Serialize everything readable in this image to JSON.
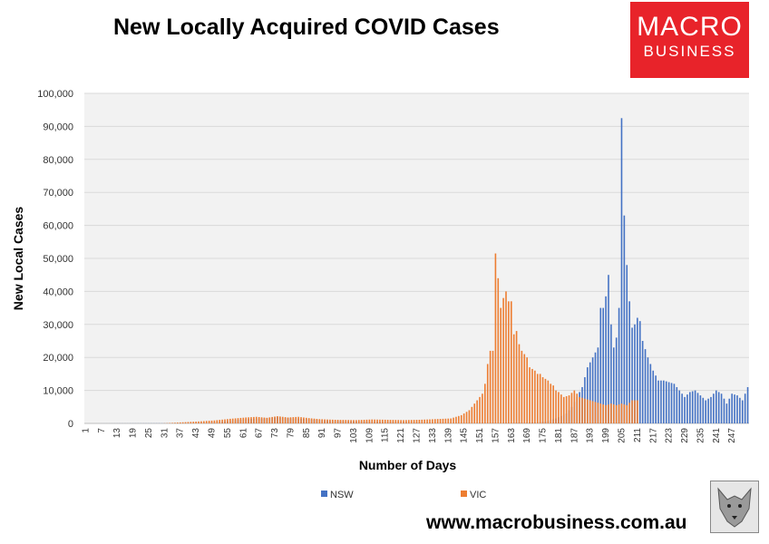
{
  "header": {
    "title": "New Locally Acquired COVID Cases"
  },
  "logo": {
    "line1": "MACRO",
    "line2": "BUSINESS"
  },
  "footer": {
    "url": "www.macrobusiness.com.au"
  },
  "colors": {
    "nsw": "#4472c4",
    "vic": "#ed7d31",
    "logo_bg": "#e8232a",
    "plot_bg": "#f2f2f2"
  },
  "chart_data": {
    "type": "bar",
    "xlabel": "Number of Days",
    "ylabel": "New Local Cases",
    "ylim": [
      0,
      100000
    ],
    "yticks": [
      "0",
      "10,000",
      "20,000",
      "30,000",
      "40,000",
      "50,000",
      "60,000",
      "70,000",
      "80,000",
      "90,000",
      "100,000"
    ],
    "x_first_day": 1,
    "x_last_day": 253,
    "x_tick_labels": [
      "1",
      "7",
      "13",
      "19",
      "25",
      "31",
      "37",
      "43",
      "49",
      "55",
      "61",
      "67",
      "73",
      "79",
      "85",
      "91",
      "97",
      "103",
      "109",
      "115",
      "121",
      "127",
      "133",
      "139",
      "145",
      "151",
      "157",
      "163",
      "169",
      "175",
      "181",
      "187",
      "193",
      "199",
      "205",
      "211",
      "217",
      "223",
      "229",
      "235",
      "241",
      "247"
    ],
    "legend_position": "bottom",
    "series": [
      {
        "name": "NSW",
        "color": "#4472c4",
        "points": [
          [
            1,
            0
          ],
          [
            40,
            50
          ],
          [
            50,
            300
          ],
          [
            56,
            800
          ],
          [
            62,
            1300
          ],
          [
            68,
            1500
          ],
          [
            74,
            1900
          ],
          [
            80,
            1500
          ],
          [
            86,
            1300
          ],
          [
            92,
            900
          ],
          [
            100,
            700
          ],
          [
            110,
            500
          ],
          [
            120,
            400
          ],
          [
            130,
            200
          ],
          [
            140,
            100
          ],
          [
            150,
            150
          ],
          [
            160,
            200
          ],
          [
            166,
            250
          ],
          [
            172,
            300
          ],
          [
            176,
            600
          ],
          [
            180,
            1500
          ],
          [
            184,
            3000
          ],
          [
            186,
            5000
          ],
          [
            188,
            8000
          ],
          [
            190,
            11000
          ],
          [
            192,
            17000
          ],
          [
            194,
            20000
          ],
          [
            196,
            23000
          ],
          [
            197,
            35000
          ],
          [
            198,
            35000
          ],
          [
            199,
            38500
          ],
          [
            200,
            45000
          ],
          [
            201,
            30000
          ],
          [
            202,
            23000
          ],
          [
            203,
            26000
          ],
          [
            204,
            35000
          ],
          [
            205,
            92500
          ],
          [
            206,
            63000
          ],
          [
            207,
            48000
          ],
          [
            208,
            37000
          ],
          [
            209,
            29000
          ],
          [
            210,
            30000
          ],
          [
            211,
            32000
          ],
          [
            212,
            31000
          ],
          [
            213,
            25000
          ],
          [
            215,
            20000
          ],
          [
            217,
            16000
          ],
          [
            219,
            13000
          ],
          [
            221,
            13000
          ],
          [
            223,
            12500
          ],
          [
            225,
            12000
          ],
          [
            227,
            10000
          ],
          [
            229,
            8000
          ],
          [
            231,
            9500
          ],
          [
            233,
            10000
          ],
          [
            235,
            8500
          ],
          [
            237,
            7000
          ],
          [
            239,
            8000
          ],
          [
            241,
            10000
          ],
          [
            243,
            9000
          ],
          [
            245,
            6000
          ],
          [
            247,
            9000
          ],
          [
            249,
            8500
          ],
          [
            251,
            7000
          ],
          [
            253,
            11000
          ]
        ]
      },
      {
        "name": "VIC",
        "color": "#ed7d31",
        "points": [
          [
            1,
            0
          ],
          [
            30,
            0
          ],
          [
            37,
            300
          ],
          [
            44,
            600
          ],
          [
            50,
            900
          ],
          [
            56,
            1400
          ],
          [
            62,
            1800
          ],
          [
            66,
            2000
          ],
          [
            70,
            1700
          ],
          [
            74,
            2200
          ],
          [
            78,
            1800
          ],
          [
            82,
            2000
          ],
          [
            86,
            1600
          ],
          [
            90,
            1300
          ],
          [
            96,
            1100
          ],
          [
            104,
            1000
          ],
          [
            110,
            1200
          ],
          [
            116,
            1100
          ],
          [
            122,
            1000
          ],
          [
            128,
            1100
          ],
          [
            134,
            1300
          ],
          [
            140,
            1500
          ],
          [
            144,
            2500
          ],
          [
            147,
            4000
          ],
          [
            149,
            6000
          ],
          [
            151,
            8000
          ],
          [
            152,
            9000
          ],
          [
            153,
            12000
          ],
          [
            154,
            18000
          ],
          [
            155,
            22000
          ],
          [
            156,
            22000
          ],
          [
            157,
            51500
          ],
          [
            158,
            44000
          ],
          [
            159,
            35000
          ],
          [
            160,
            38000
          ],
          [
            161,
            40000
          ],
          [
            162,
            37000
          ],
          [
            163,
            37000
          ],
          [
            164,
            27000
          ],
          [
            165,
            28000
          ],
          [
            166,
            24000
          ],
          [
            167,
            22000
          ],
          [
            168,
            21000
          ],
          [
            169,
            20000
          ],
          [
            170,
            17000
          ],
          [
            171,
            16500
          ],
          [
            172,
            16000
          ],
          [
            173,
            15000
          ],
          [
            174,
            15000
          ],
          [
            175,
            14000
          ],
          [
            176,
            13500
          ],
          [
            177,
            13000
          ],
          [
            178,
            12000
          ],
          [
            179,
            11500
          ],
          [
            180,
            10000
          ],
          [
            181,
            9500
          ],
          [
            183,
            8000
          ],
          [
            185,
            8500
          ],
          [
            187,
            10000
          ],
          [
            189,
            8000
          ],
          [
            191,
            7500
          ],
          [
            193,
            7000
          ],
          [
            195,
            6500
          ],
          [
            197,
            6000
          ],
          [
            199,
            5500
          ],
          [
            201,
            6000
          ],
          [
            203,
            5500
          ],
          [
            205,
            6000
          ],
          [
            207,
            5500
          ],
          [
            209,
            7000
          ],
          [
            211,
            7000
          ]
        ]
      }
    ]
  }
}
